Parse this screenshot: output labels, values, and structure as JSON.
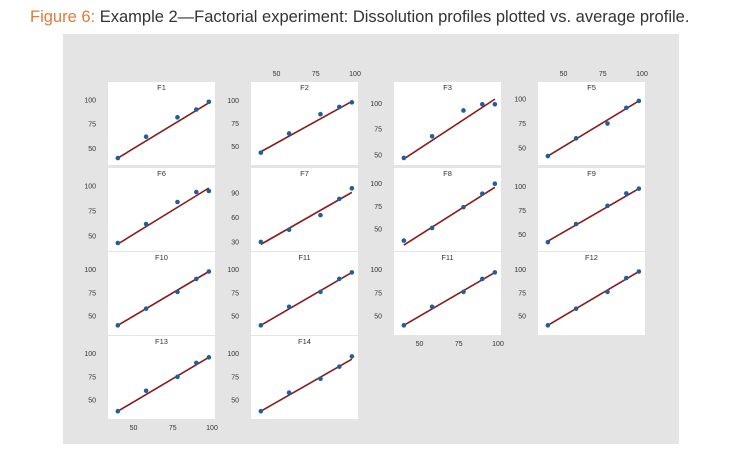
{
  "figure": {
    "label": "Figure 6:",
    "caption": "Example 2—Factorial experiment: Dissolution profiles plotted vs. average profile."
  },
  "colors": {
    "point": "#1f5f9e",
    "line": "#8b1a1a",
    "panel": "#ffffff",
    "background": "#e4e4e4"
  },
  "chart_data": {
    "type": "scatter",
    "x_avg": [
      40,
      58,
      78,
      90,
      98
    ],
    "xlim": [
      35,
      100
    ],
    "x_ticks_bottom": [
      50,
      75,
      100
    ],
    "x_ticks_top": [
      50,
      75,
      100
    ],
    "panels": [
      {
        "title": "F1",
        "col": 0,
        "row": 0,
        "y": [
          40,
          62,
          82,
          90,
          98
        ],
        "ylim": [
          38,
          105
        ],
        "yticks": [
          100,
          75,
          50
        ],
        "fit": [
          40,
          97
        ]
      },
      {
        "title": "F2",
        "col": 1,
        "row": 0,
        "y": [
          43,
          64,
          85,
          93,
          98
        ],
        "ylim": [
          35,
          106
        ],
        "yticks": [
          100,
          75,
          50
        ],
        "fit": [
          44,
          99
        ],
        "top_axis": true
      },
      {
        "title": "F3",
        "col": 2,
        "row": 0,
        "y": [
          47,
          68,
          93,
          99,
          99
        ],
        "ylim": [
          45,
          108
        ],
        "yticks": [
          100,
          75,
          50
        ],
        "fit": [
          46,
          104
        ]
      },
      {
        "title": "F5",
        "col": 3,
        "row": 0,
        "y": [
          42,
          60,
          75,
          91,
          98
        ],
        "ylim": [
          38,
          104
        ],
        "yticks": [
          100,
          75,
          50
        ],
        "fit": [
          42,
          98
        ],
        "top_axis": true
      },
      {
        "title": "F6",
        "col": 0,
        "row": 1,
        "y": [
          43,
          62,
          84,
          94,
          95
        ],
        "ylim": [
          40,
          105
        ],
        "yticks": [
          100,
          75,
          50
        ],
        "fit": [
          42,
          98
        ]
      },
      {
        "title": "F7",
        "col": 1,
        "row": 1,
        "y": [
          30,
          45,
          63,
          83,
          96
        ],
        "ylim": [
          25,
          105
        ],
        "yticks": [
          90,
          60,
          30
        ],
        "fit": [
          27,
          91
        ]
      },
      {
        "title": "F8",
        "col": 2,
        "row": 1,
        "y": [
          37,
          51,
          74,
          89,
          100
        ],
        "ylim": [
          31,
          103
        ],
        "yticks": [
          100,
          75,
          50
        ],
        "fit": [
          32,
          96
        ]
      },
      {
        "title": "F9",
        "col": 3,
        "row": 1,
        "y": [
          42,
          61,
          80,
          93,
          98
        ],
        "ylim": [
          38,
          106
        ],
        "yticks": [
          100,
          75,
          50
        ],
        "fit": [
          43,
          98
        ]
      },
      {
        "title": "F10",
        "col": 0,
        "row": 2,
        "y": [
          40,
          58,
          76,
          90,
          98
        ],
        "ylim": [
          35,
          105
        ],
        "yticks": [
          100,
          75,
          50
        ],
        "fit": [
          40,
          98
        ]
      },
      {
        "title": "F11",
        "col": 1,
        "row": 2,
        "y": [
          40,
          60,
          76,
          90,
          97
        ],
        "ylim": [
          35,
          105
        ],
        "yticks": [
          100,
          75,
          50
        ],
        "fit": [
          40,
          97
        ]
      },
      {
        "title": "F11",
        "col": 2,
        "row": 2,
        "y": [
          40,
          60,
          76,
          90,
          97
        ],
        "ylim": [
          35,
          105
        ],
        "yticks": [
          100,
          75,
          50
        ],
        "fit": [
          40,
          97
        ]
      },
      {
        "title": "F12",
        "col": 3,
        "row": 2,
        "y": [
          40,
          58,
          76,
          91,
          98
        ],
        "ylim": [
          35,
          105
        ],
        "yticks": [
          100,
          75,
          50
        ],
        "fit": [
          40,
          98
        ]
      },
      {
        "title": "F13",
        "col": 0,
        "row": 3,
        "y": [
          38,
          60,
          75,
          90,
          96
        ],
        "ylim": [
          35,
          105
        ],
        "yticks": [
          100,
          75,
          50
        ],
        "fit": [
          38,
          96
        ]
      },
      {
        "title": "F14",
        "col": 1,
        "row": 3,
        "y": [
          38,
          58,
          73,
          86,
          97
        ],
        "ylim": [
          35,
          105
        ],
        "yticks": [
          100,
          75,
          50
        ],
        "fit": [
          38,
          94
        ]
      }
    ]
  }
}
